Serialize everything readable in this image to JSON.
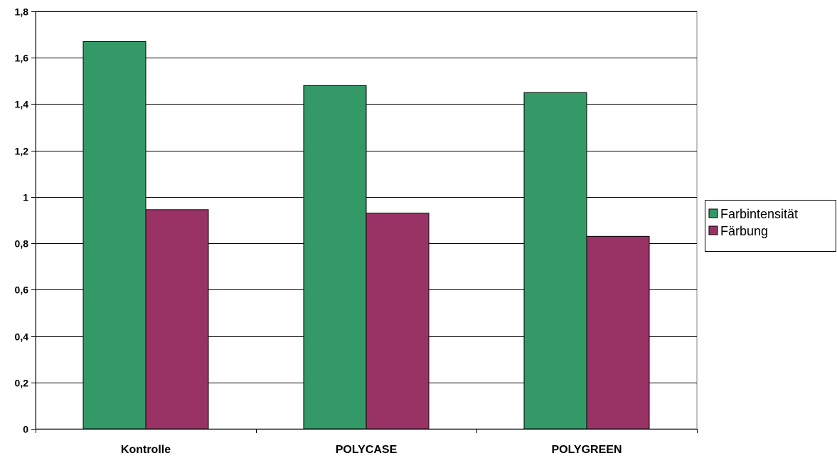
{
  "chart_data": {
    "type": "bar",
    "categories": [
      "Kontrolle",
      "POLYCASE",
      "POLYGREEN"
    ],
    "series": [
      {
        "name": "Farbintensität",
        "values": [
          1.67,
          1.48,
          1.45
        ],
        "color": "#339966"
      },
      {
        "name": "Färbung",
        "values": [
          0.945,
          0.93,
          0.83
        ],
        "color": "#993366"
      }
    ],
    "ylim": [
      0,
      1.8
    ],
    "yticks": [
      {
        "value": 0,
        "label": "0"
      },
      {
        "value": 0.2,
        "label": "0,2"
      },
      {
        "value": 0.4,
        "label": "0,4"
      },
      {
        "value": 0.6,
        "label": "0,6"
      },
      {
        "value": 0.8,
        "label": "0,8"
      },
      {
        "value": 1,
        "label": "1"
      },
      {
        "value": 1.2,
        "label": "1,2"
      },
      {
        "value": 1.4,
        "label": "1,4"
      },
      {
        "value": 1.6,
        "label": "1,6"
      },
      {
        "value": 1.8,
        "label": "1,8"
      }
    ],
    "grid": true,
    "legend": "right"
  }
}
